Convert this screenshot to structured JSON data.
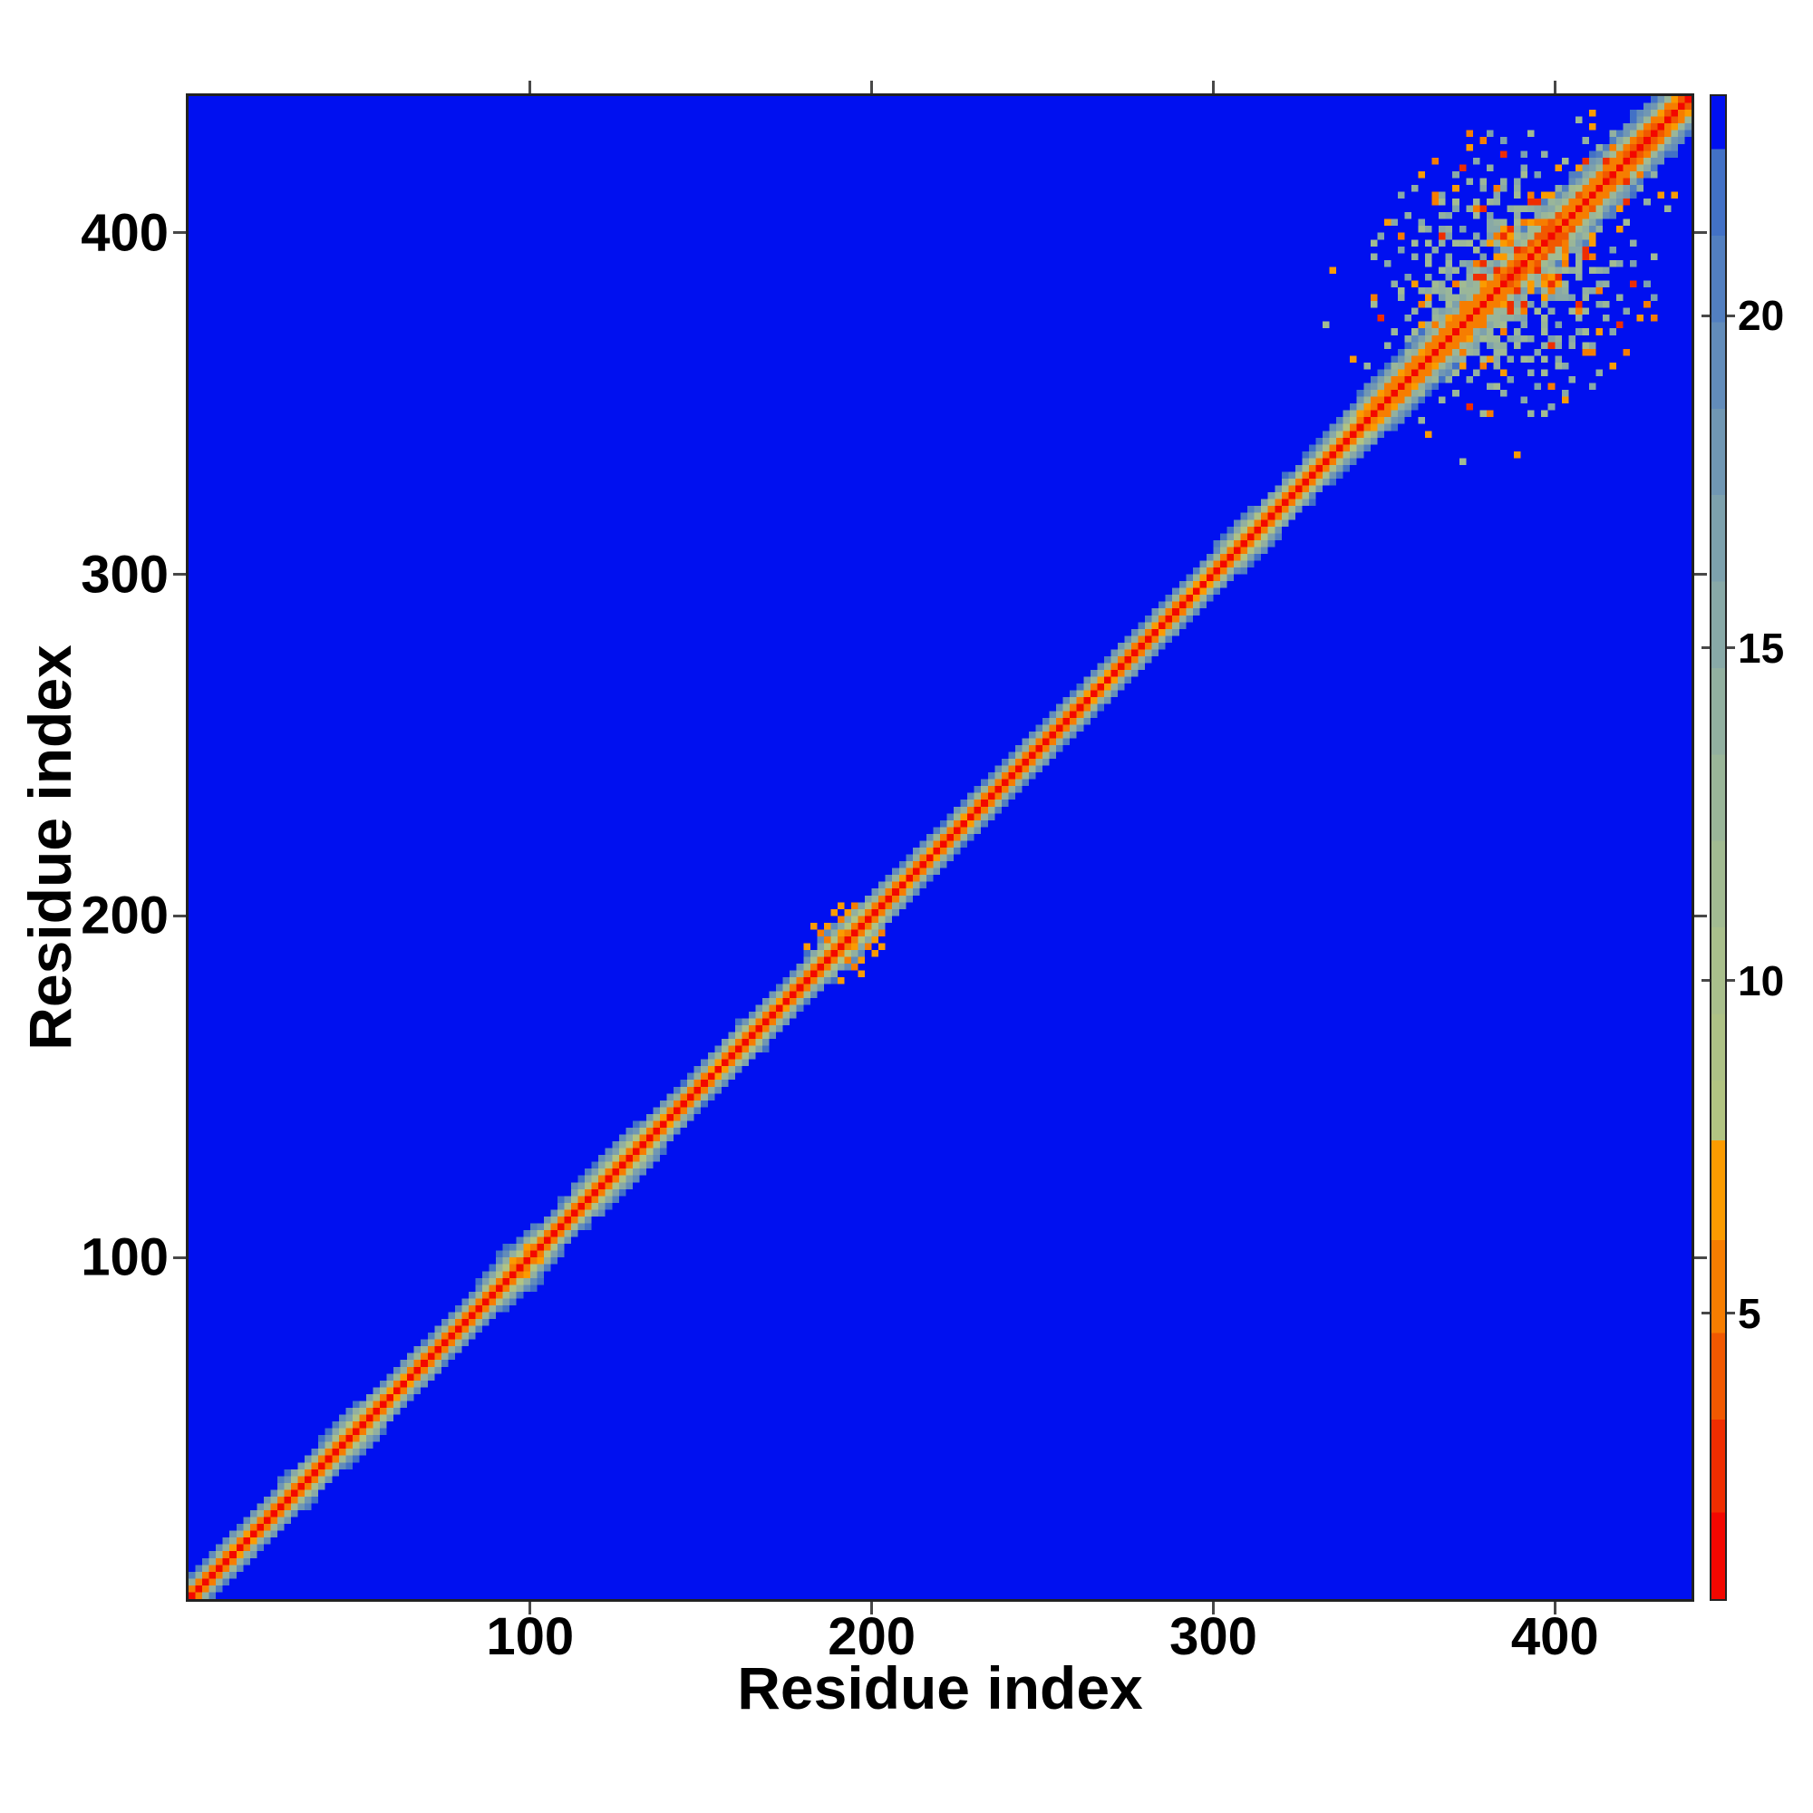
{
  "figure": {
    "background": "#ffffff",
    "frame_color": "#222222",
    "tick_color": "#484848"
  },
  "chart_data": {
    "type": "heatmap",
    "title": "",
    "xlabel": "Residue index",
    "ylabel": "Residue index",
    "x_range": [
      0,
      440
    ],
    "y_range": [
      0,
      440
    ],
    "x_ticks": [
      100,
      200,
      300,
      400
    ],
    "y_ticks": [
      100,
      200,
      300,
      400
    ],
    "grid": false,
    "legend": "none",
    "colorbar": {
      "position": "right",
      "ticks": [
        5,
        10,
        15,
        20
      ],
      "vmin": 0.7,
      "vmax": 23.3
    },
    "palette": [
      {
        "v": 2.0,
        "color": "#f30700"
      },
      {
        "v": 3.4,
        "color": "#ef2d00"
      },
      {
        "v": 4.7,
        "color": "#f15800"
      },
      {
        "v": 6.1,
        "color": "#f67d00"
      },
      {
        "v": 7.6,
        "color": "#fb9b00"
      },
      {
        "v": 8.5,
        "color": "#b2c482"
      },
      {
        "v": 9.5,
        "color": "#aec286"
      },
      {
        "v": 10.8,
        "color": "#a9bf8c"
      },
      {
        "v": 12.1,
        "color": "#a2bb92"
      },
      {
        "v": 13.4,
        "color": "#9ab699"
      },
      {
        "v": 14.7,
        "color": "#92b0a0"
      },
      {
        "v": 16.0,
        "color": "#88a9a7"
      },
      {
        "v": 17.3,
        "color": "#7da1ad"
      },
      {
        "v": 18.6,
        "color": "#7097b3"
      },
      {
        "v": 19.9,
        "color": "#628cba"
      },
      {
        "v": 21.2,
        "color": "#527fc0"
      },
      {
        "v": 22.5,
        "color": "#4271c6"
      },
      {
        "v": 23.3,
        "color": "#0010f0"
      }
    ],
    "matrix": {
      "n_residues": 440,
      "cell_residues": 2,
      "adjacent_distance": 3.8,
      "adjacent_value": 5.8,
      "power": 0.92,
      "noise_amp": 0.09,
      "cap": 23.3,
      "bulges": [
        {
          "center": 33,
          "sigma": 4,
          "strength": 0.22
        },
        {
          "center": 50,
          "sigma": 5,
          "strength": 0.35
        },
        {
          "center": 98,
          "sigma": 6,
          "strength": 0.45
        },
        {
          "center": 118,
          "sigma": 4,
          "strength": 0.3
        },
        {
          "center": 130,
          "sigma": 5,
          "strength": 0.4
        },
        {
          "center": 163,
          "sigma": 5,
          "strength": 0.18
        },
        {
          "center": 193,
          "sigma": 6,
          "strength": 0.45
        },
        {
          "center": 310,
          "sigma": 4,
          "strength": 0.3
        },
        {
          "center": 352,
          "sigma": 7,
          "strength": 0.2
        },
        {
          "center": 402,
          "sigma": 42,
          "strength": 0.92
        }
      ],
      "cluster": {
        "center": 387,
        "mid_sigma": 21,
        "sep_decay": 24,
        "density": 1.35,
        "mid_min": 352,
        "mid_max": 428,
        "sep_min": 6,
        "sep_max": 56,
        "orange_fraction": 0.2,
        "red_fraction": 0.045,
        "sage_value_base": 9.5,
        "sage_value_spread": 7.0,
        "orange_value_base": 5.0,
        "orange_value_spread": 2.4,
        "red_value": 3.0
      },
      "petal_cells": [
        [
          93,
          98,
          6.2
        ],
        [
          92,
          97,
          5.4
        ],
        [
          94,
          100,
          6.8
        ],
        [
          95,
          99,
          5.2
        ],
        [
          96,
          100,
          6.3
        ],
        [
          90,
          95,
          7.0
        ],
        [
          95,
          101,
          6.9
        ],
        [
          97,
          101,
          6.0
        ],
        [
          91,
          98,
          7.2
        ],
        [
          93,
          96,
          5.0
        ]
      ]
    }
  }
}
